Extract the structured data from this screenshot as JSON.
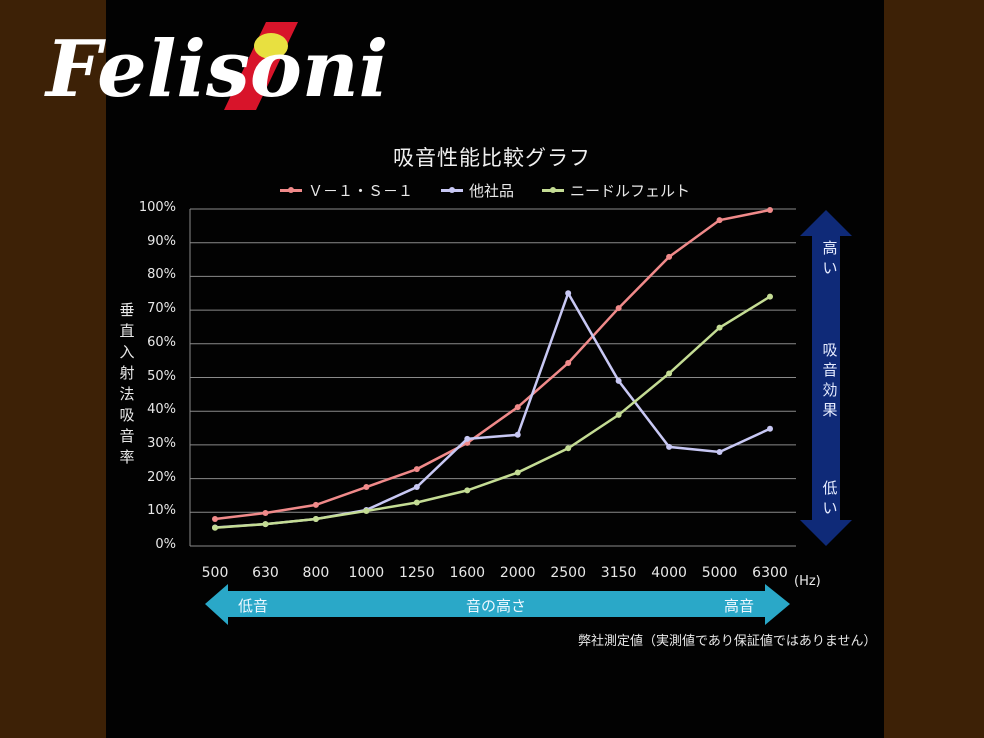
{
  "brand": {
    "logo_text": "Felisoni"
  },
  "chart_data": {
    "type": "line",
    "title": "吸音性能比較グラフ",
    "xlabel": "(Hz)",
    "ylabel": "垂直入射法吸音率",
    "categories": [
      "500",
      "630",
      "800",
      "1000",
      "1250",
      "1600",
      "2000",
      "2500",
      "3150",
      "4000",
      "5000",
      "6300"
    ],
    "ylim": [
      0,
      100
    ],
    "yticks": [
      "0%",
      "10%",
      "20%",
      "30%",
      "40%",
      "50%",
      "60%",
      "70%",
      "80%",
      "90%",
      "100%"
    ],
    "grid": true,
    "legend_position": "top",
    "series": [
      {
        "name": "Ｖ－１・Ｓ－１",
        "color": "#f08a8a",
        "values": [
          8,
          9.8,
          12.2,
          17.5,
          22.8,
          30.6,
          41.2,
          54.3,
          70.6,
          85.8,
          96.7,
          99.7
        ]
      },
      {
        "name": "他社品",
        "color": "#c8c8f4",
        "values": [
          5.5,
          6.5,
          8,
          10.7,
          17.5,
          31.8,
          33,
          75,
          49,
          29.4,
          27.9,
          34.8
        ]
      },
      {
        "name": "ニードルフェルト",
        "color": "#c4dc94",
        "values": [
          5.4,
          6.5,
          8,
          10.4,
          12.9,
          16.5,
          21.8,
          29,
          38.9,
          51.2,
          64.8,
          74
        ]
      }
    ]
  },
  "annotations": {
    "vertical_arrow": {
      "top": "高い",
      "middle": "吸音効果",
      "bottom": "低い",
      "color": "#0f2a78"
    },
    "horizontal_arrow": {
      "left": "低音",
      "middle": "音の高さ",
      "right": "高音",
      "color": "#2aa8c8"
    },
    "note": "弊社測定値（実測値であり保証値ではありません）"
  }
}
